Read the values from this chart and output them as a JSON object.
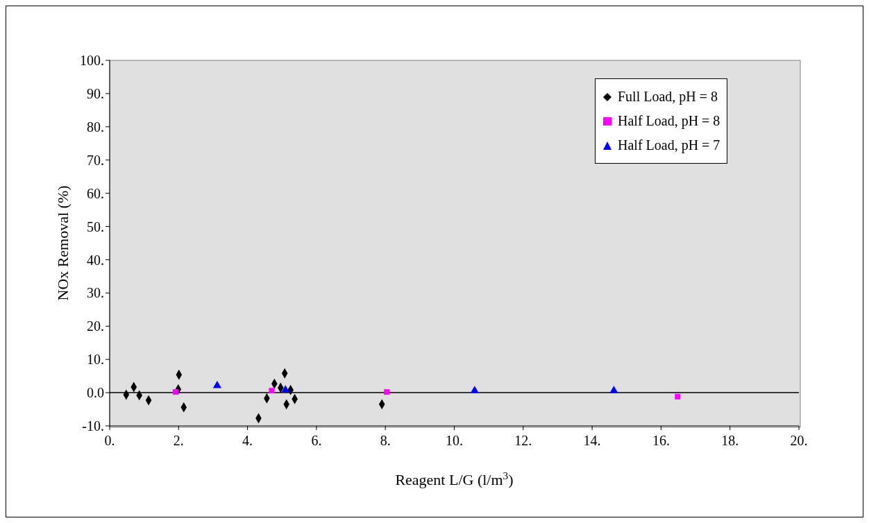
{
  "chart_data": {
    "type": "scatter",
    "xlabel": "Reagent L/G (l/m$^{3}$)",
    "ylabel": "NOx Removal (%)",
    "xlim": [
      0,
      20
    ],
    "ylim": [
      -10,
      100
    ],
    "xticks": [
      {
        "value": 0,
        "label": "0."
      },
      {
        "value": 2,
        "label": "2."
      },
      {
        "value": 4,
        "label": "4."
      },
      {
        "value": 6,
        "label": "6."
      },
      {
        "value": 8,
        "label": "8."
      },
      {
        "value": 10,
        "label": "10."
      },
      {
        "value": 12,
        "label": "12."
      },
      {
        "value": 14,
        "label": "14."
      },
      {
        "value": 16,
        "label": "16."
      },
      {
        "value": 18,
        "label": "18."
      },
      {
        "value": 20,
        "label": "20."
      }
    ],
    "yticks": [
      {
        "value": -10,
        "label": "-10."
      },
      {
        "value": 0,
        "label": "0.0"
      },
      {
        "value": 10,
        "label": "10."
      },
      {
        "value": 20,
        "label": "20."
      },
      {
        "value": 30,
        "label": "30."
      },
      {
        "value": 40,
        "label": "40."
      },
      {
        "value": 50,
        "label": "50."
      },
      {
        "value": 60,
        "label": "60."
      },
      {
        "value": 70,
        "label": "70."
      },
      {
        "value": 80,
        "label": "80."
      },
      {
        "value": 90,
        "label": "90."
      },
      {
        "value": 100,
        "label": "100."
      }
    ],
    "grid": false,
    "legend": "top right",
    "ref_lines": [
      {
        "axis": "y",
        "value": 0,
        "color": "#000000"
      }
    ],
    "series": [
      {
        "name": "Full Load, pH = 8",
        "color": "#000000",
        "marker": "diamond",
        "x": [
          0.48,
          0.7,
          0.86,
          1.13,
          2.01,
          1.99,
          2.15,
          4.32,
          4.56,
          4.78,
          4.96,
          5.08,
          5.13,
          5.25,
          5.37,
          7.9
        ],
        "values": [
          -0.6,
          1.7,
          -0.8,
          -2.3,
          5.4,
          1.0,
          -4.4,
          -7.7,
          -1.7,
          2.7,
          1.5,
          5.8,
          -3.5,
          0.8,
          -1.9,
          -3.5
        ]
      },
      {
        "name": "Half Load, pH = 8",
        "color": "#ff00ff",
        "marker": "square",
        "x": [
          1.91,
          4.7,
          8.04,
          16.48
        ],
        "values": [
          0.2,
          0.6,
          0.2,
          -1.2
        ]
      },
      {
        "name": "Half Load, pH = 7",
        "color": "#0000ff",
        "marker": "triangle",
        "x": [
          3.12,
          5.1,
          10.59,
          14.63
        ],
        "values": [
          2.1,
          0.8,
          0.6,
          0.6
        ]
      }
    ]
  }
}
